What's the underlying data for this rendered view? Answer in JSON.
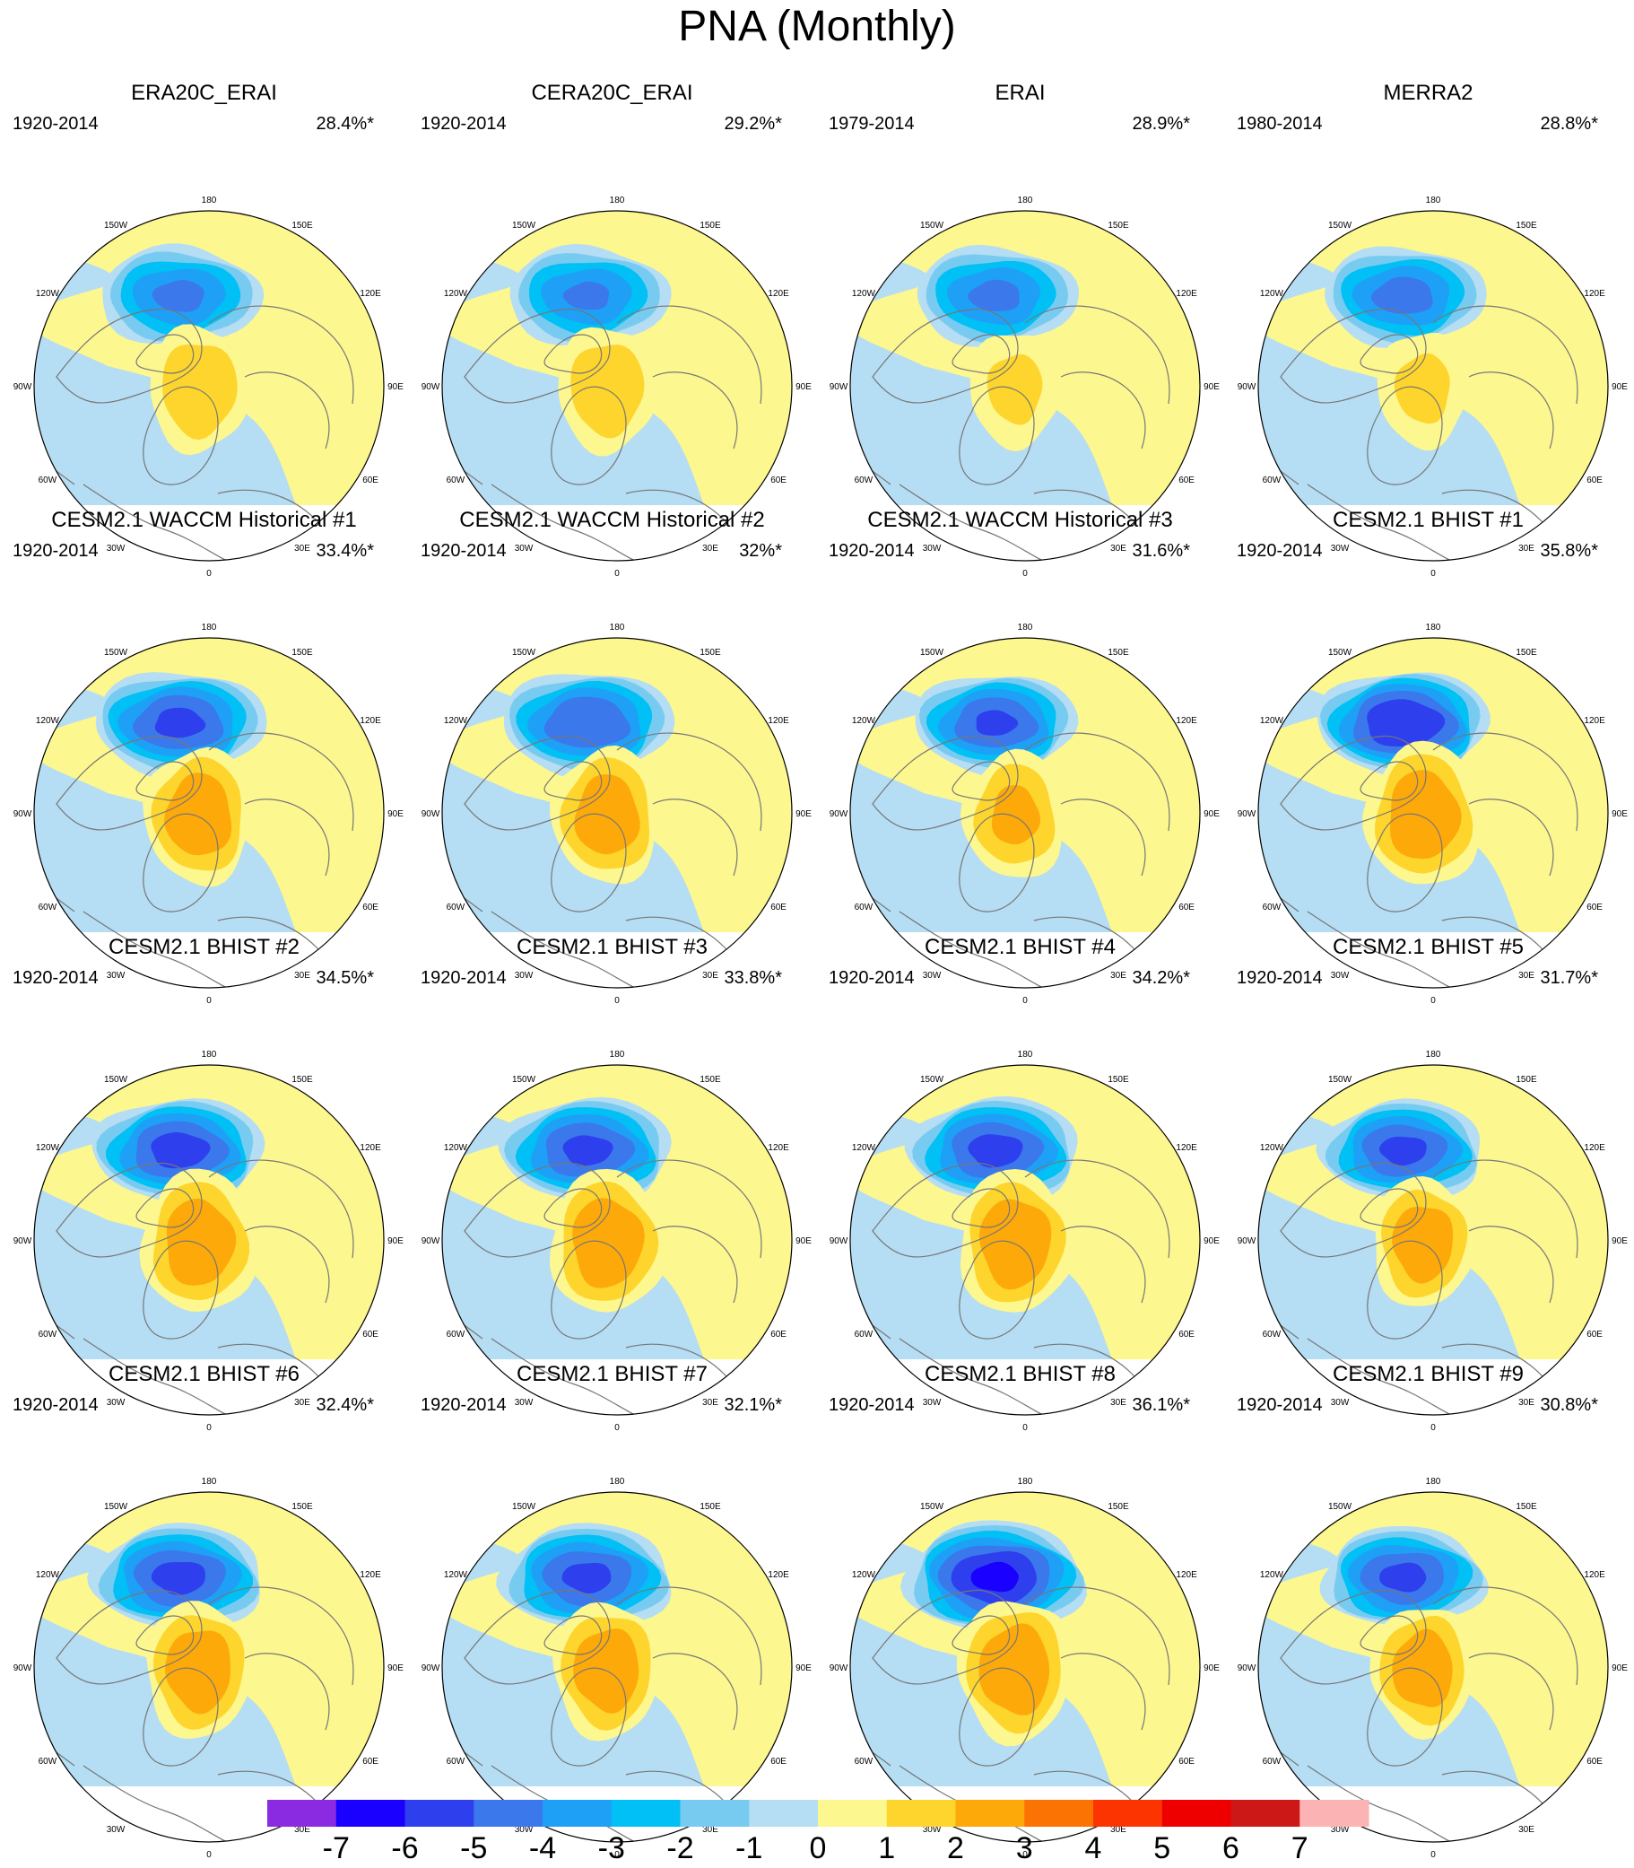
{
  "title": "PNA (Monthly)",
  "lon_labels": [
    "180",
    "150E",
    "120E",
    "90E",
    "60E",
    "30E",
    "0",
    "30W",
    "60W",
    "90W",
    "120W",
    "150W"
  ],
  "panels": [
    {
      "title": "ERA20C_ERAI",
      "years": "1920-2014",
      "percent": "28.4%*",
      "neg_peak": -4.6,
      "pos_peak": 2.4,
      "neg_scale": 1.0,
      "pos_scale": 1.0
    },
    {
      "title": "CERA20C_ERAI",
      "years": "1920-2014",
      "percent": "29.2%*",
      "neg_peak": -4.5,
      "pos_peak": 2.3,
      "neg_scale": 1.0,
      "pos_scale": 1.0
    },
    {
      "title": "ERAI",
      "years": "1979-2014",
      "percent": "28.9%*",
      "neg_peak": -4.6,
      "pos_peak": 1.7,
      "neg_scale": 1.0,
      "pos_scale": 0.95
    },
    {
      "title": "MERRA2",
      "years": "1980-2014",
      "percent": "28.8%*",
      "neg_peak": -4.8,
      "pos_peak": 1.7,
      "neg_scale": 1.0,
      "pos_scale": 0.95
    },
    {
      "title": "CESM2.1 WACCM Historical #1",
      "years": "1920-2014",
      "percent": "33.4%*",
      "neg_peak": -5.6,
      "pos_peak": 3.3,
      "neg_scale": 1.05,
      "pos_scale": 1.05
    },
    {
      "title": "CESM2.1 WACCM Historical #2",
      "years": "1920-2014",
      "percent": "32%*",
      "neg_peak": -5.4,
      "pos_peak": 3.2,
      "neg_scale": 1.05,
      "pos_scale": 1.05
    },
    {
      "title": "CESM2.1 WACCM Historical #3",
      "years": "1920-2014",
      "percent": "31.6%*",
      "neg_peak": -5.5,
      "pos_peak": 2.7,
      "neg_scale": 1.0,
      "pos_scale": 1.0
    },
    {
      "title": "CESM2.1 BHIST #1",
      "years": "1920-2014",
      "percent": "35.8%*",
      "neg_peak": -6.4,
      "pos_peak": 3.4,
      "neg_scale": 1.05,
      "pos_scale": 1.1
    },
    {
      "title": "CESM2.1 BHIST #2",
      "years": "1920-2014",
      "percent": "34.5%*",
      "neg_peak": -5.8,
      "pos_peak": 3.3,
      "neg_scale": 1.05,
      "pos_scale": 1.1
    },
    {
      "title": "CESM2.1 BHIST #3",
      "years": "1920-2014",
      "percent": "33.8%*",
      "neg_peak": -5.6,
      "pos_peak": 3.4,
      "neg_scale": 1.05,
      "pos_scale": 1.1
    },
    {
      "title": "CESM2.1 BHIST #4",
      "years": "1920-2014",
      "percent": "34.2%*",
      "neg_peak": -5.7,
      "pos_peak": 3.4,
      "neg_scale": 1.05,
      "pos_scale": 1.1
    },
    {
      "title": "CESM2.1 BHIST #5",
      "years": "1920-2014",
      "percent": "31.7%*",
      "neg_peak": -5.6,
      "pos_peak": 3.2,
      "neg_scale": 1.0,
      "pos_scale": 1.0
    },
    {
      "title": "CESM2.1 BHIST #6",
      "years": "1920-2014",
      "percent": "32.4%*",
      "neg_peak": -5.7,
      "pos_peak": 3.3,
      "neg_scale": 1.05,
      "pos_scale": 1.05
    },
    {
      "title": "CESM2.1 BHIST #7",
      "years": "1920-2014",
      "percent": "32.1%*",
      "neg_peak": -5.6,
      "pos_peak": 3.3,
      "neg_scale": 1.05,
      "pos_scale": 1.05
    },
    {
      "title": "CESM2.1 BHIST #8",
      "years": "1920-2014",
      "percent": "36.1%*",
      "neg_peak": -6.6,
      "pos_peak": 3.4,
      "neg_scale": 1.1,
      "pos_scale": 1.1
    },
    {
      "title": "CESM2.1 BHIST #9",
      "years": "1920-2014",
      "percent": "30.8%*",
      "neg_peak": -5.6,
      "pos_peak": 3.2,
      "neg_scale": 1.0,
      "pos_scale": 1.0
    }
  ],
  "colorbar": {
    "levels": [
      "-7",
      "-6",
      "-5",
      "-4",
      "-3",
      "-2",
      "-1",
      "0",
      "1",
      "2",
      "3",
      "4",
      "5",
      "6",
      "7"
    ],
    "colors": [
      "#8a2be2",
      "#1a00ff",
      "#2e3fee",
      "#3a78ec",
      "#1ea0f6",
      "#00c0f5",
      "#78cbf0",
      "#b5ddf3",
      "#fdf78f",
      "#fdd52c",
      "#fca909",
      "#fb7302",
      "#fb3402",
      "#ee0000",
      "#cd1818",
      "#fbb3b3"
    ]
  },
  "colors": {
    "land_outline": "#777777",
    "map_border": "#000000"
  }
}
